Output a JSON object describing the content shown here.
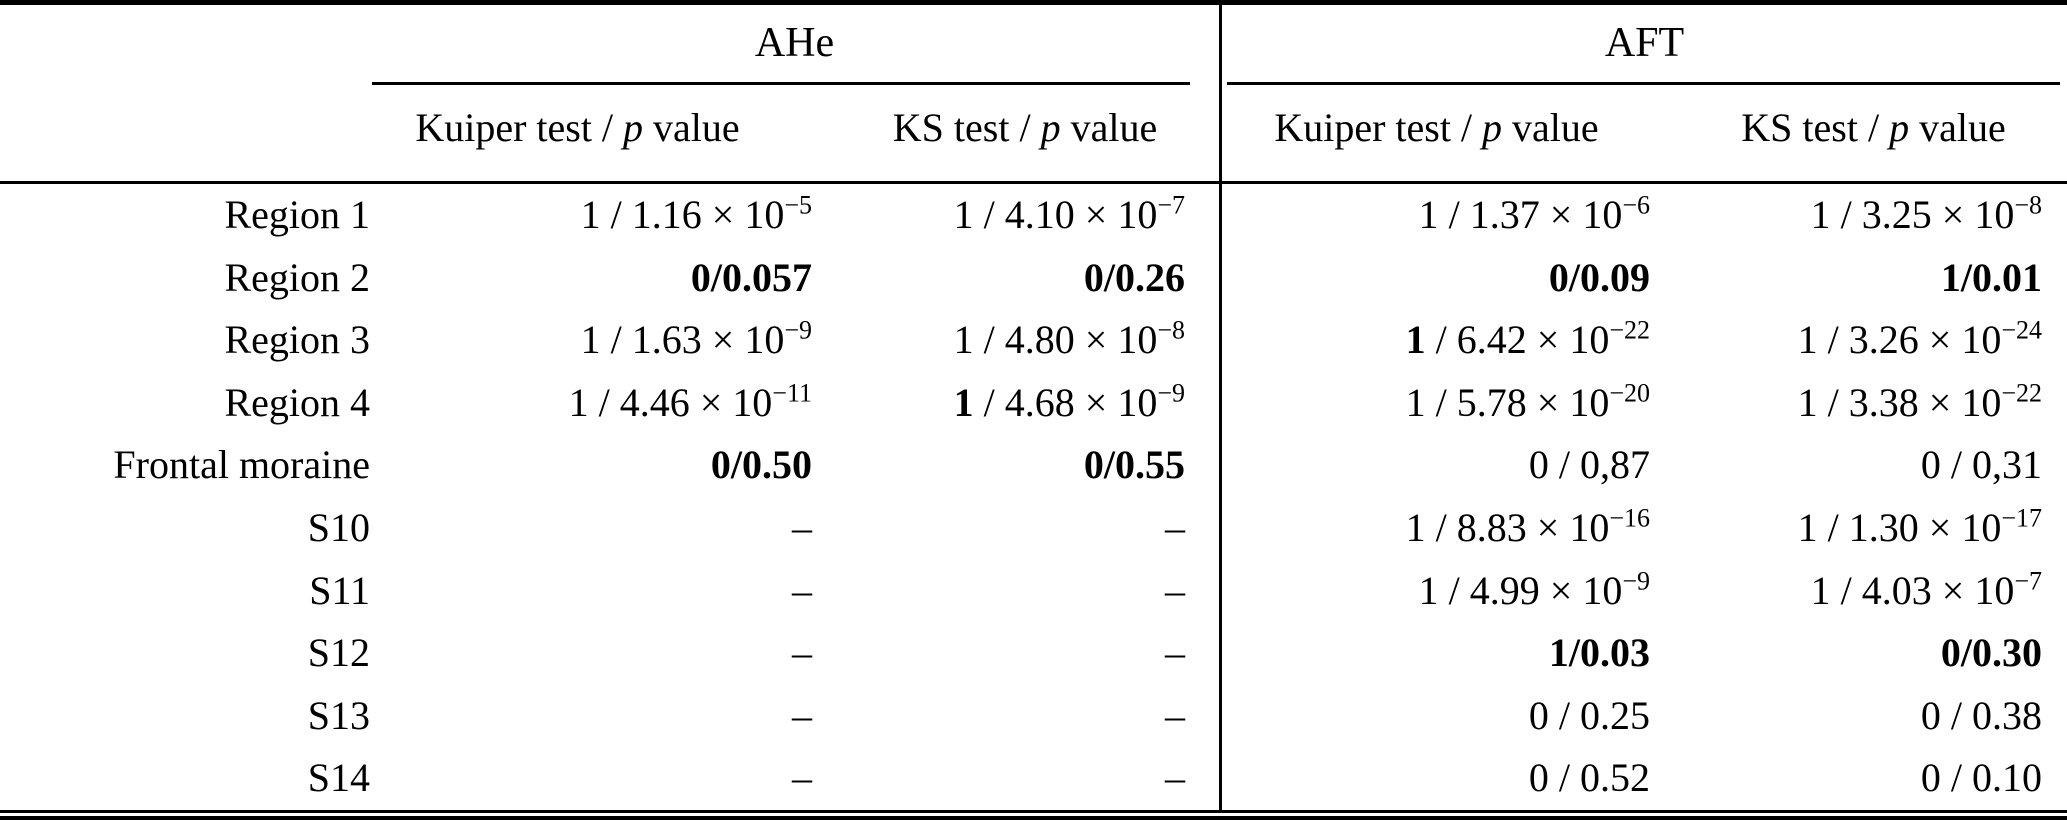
{
  "colors": {
    "text": "#000000",
    "background": "#ffffff",
    "rules": "#000000"
  },
  "table": {
    "col_groups": [
      {
        "label": "AHe"
      },
      {
        "label": "AFT"
      }
    ],
    "sub_headers": [
      [
        {
          "t": "Kuiper test / "
        },
        {
          "t": "p",
          "i": true
        },
        {
          "t": " value"
        }
      ],
      [
        {
          "t": "KS test / "
        },
        {
          "t": "p",
          "i": true
        },
        {
          "t": " value"
        }
      ],
      [
        {
          "t": "Kuiper test / "
        },
        {
          "t": "p",
          "i": true
        },
        {
          "t": " value"
        }
      ],
      [
        {
          "t": "KS test / "
        },
        {
          "t": "p",
          "i": true
        },
        {
          "t": " value"
        }
      ]
    ],
    "rows": [
      {
        "label": "Region 1",
        "cells": [
          [
            {
              "t": "1 / 1.16 × 10"
            },
            {
              "t": "−5",
              "sup": true
            }
          ],
          [
            {
              "t": "1 / 4.10 × 10"
            },
            {
              "t": "−7",
              "sup": true
            }
          ],
          [
            {
              "t": "1 / 1.37 × 10"
            },
            {
              "t": "−6",
              "sup": true
            }
          ],
          [
            {
              "t": "1 / 3.25 × 10"
            },
            {
              "t": "−8",
              "sup": true
            }
          ]
        ]
      },
      {
        "label": "Region 2",
        "cells": [
          [
            {
              "t": "0/0.057",
              "b": true
            }
          ],
          [
            {
              "t": "0/0.26",
              "b": true
            }
          ],
          [
            {
              "t": "0/0.09",
              "b": true
            }
          ],
          [
            {
              "t": "1/0.01",
              "b": true
            }
          ]
        ]
      },
      {
        "label": "Region 3",
        "cells": [
          [
            {
              "t": "1 / 1.63 × 10"
            },
            {
              "t": "−9",
              "sup": true
            }
          ],
          [
            {
              "t": "1 / 4.80 × 10"
            },
            {
              "t": "−8",
              "sup": true
            }
          ],
          [
            {
              "t": "1",
              "b": true
            },
            {
              "t": " / 6.42 × 10"
            },
            {
              "t": "−22",
              "sup": true
            }
          ],
          [
            {
              "t": "1 / 3.26 × 10"
            },
            {
              "t": "−24",
              "sup": true
            }
          ]
        ]
      },
      {
        "label": "Region 4",
        "cells": [
          [
            {
              "t": "1 / 4.46 × 10"
            },
            {
              "t": "−11",
              "sup": true
            }
          ],
          [
            {
              "t": "1",
              "b": true
            },
            {
              "t": " / 4.68 × 10"
            },
            {
              "t": "−9",
              "sup": true
            }
          ],
          [
            {
              "t": "1 / 5.78 × 10"
            },
            {
              "t": "−20",
              "sup": true
            }
          ],
          [
            {
              "t": "1 / 3.38 × 10"
            },
            {
              "t": "−22",
              "sup": true
            }
          ]
        ]
      },
      {
        "label": "Frontal moraine",
        "cells": [
          [
            {
              "t": "0/0.50",
              "b": true
            }
          ],
          [
            {
              "t": "0/0.55",
              "b": true
            }
          ],
          [
            {
              "t": "0 / 0,87"
            }
          ],
          [
            {
              "t": "0 / 0,31"
            }
          ]
        ]
      },
      {
        "label": "S10",
        "cells": [
          [
            {
              "t": "–"
            }
          ],
          [
            {
              "t": "–"
            }
          ],
          [
            {
              "t": "1 / 8.83 × 10"
            },
            {
              "t": "−16",
              "sup": true
            }
          ],
          [
            {
              "t": "1 / 1.30 × 10"
            },
            {
              "t": "−17",
              "sup": true
            }
          ]
        ]
      },
      {
        "label": "S11",
        "cells": [
          [
            {
              "t": "–"
            }
          ],
          [
            {
              "t": "–"
            }
          ],
          [
            {
              "t": "1 / 4.99 × 10"
            },
            {
              "t": "−9",
              "sup": true
            }
          ],
          [
            {
              "t": "1 / 4.03 × 10"
            },
            {
              "t": "−7",
              "sup": true
            }
          ]
        ]
      },
      {
        "label": "S12",
        "cells": [
          [
            {
              "t": "–"
            }
          ],
          [
            {
              "t": "–"
            }
          ],
          [
            {
              "t": "1/0.03",
              "b": true
            }
          ],
          [
            {
              "t": "0/0.30",
              "b": true
            }
          ]
        ]
      },
      {
        "label": "S13",
        "cells": [
          [
            {
              "t": "–"
            }
          ],
          [
            {
              "t": "–"
            }
          ],
          [
            {
              "t": "0 / 0.25"
            }
          ],
          [
            {
              "t": "0 / 0.38"
            }
          ]
        ]
      },
      {
        "label": "S14",
        "cells": [
          [
            {
              "t": "–"
            }
          ],
          [
            {
              "t": "–"
            }
          ],
          [
            {
              "t": "0 / 0.52"
            }
          ],
          [
            {
              "t": "0 / 0.10"
            }
          ]
        ]
      }
    ]
  }
}
